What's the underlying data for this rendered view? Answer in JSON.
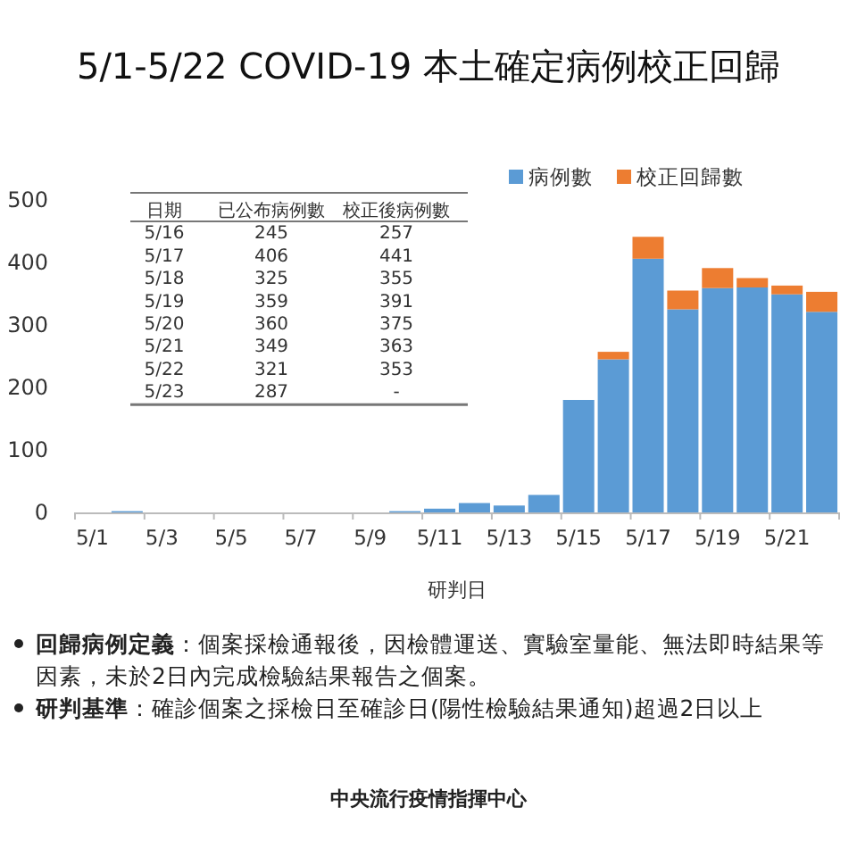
{
  "chart_data": {
    "type": "bar",
    "stacked": true,
    "title": "5/1-5/22 COVID-19 本土確定病例校正回歸",
    "xlabel": "研判日",
    "categories": [
      "5/1",
      null,
      "5/3",
      null,
      "5/5",
      null,
      "5/7",
      null,
      "5/9",
      null,
      "5/11",
      null,
      "5/13",
      null,
      "5/15",
      null,
      "5/17",
      null,
      "5/19",
      null,
      "5/21",
      null
    ],
    "series": [
      {
        "name": "病例數",
        "color": "#5b9bd5",
        "values": [
          0,
          2,
          0,
          0,
          0,
          0,
          0,
          0,
          0,
          2,
          6,
          15,
          11,
          28,
          180,
          245,
          406,
          325,
          359,
          360,
          349,
          321
        ]
      },
      {
        "name": "校正回歸數",
        "color": "#ed7d31",
        "values": [
          0,
          0,
          0,
          0,
          0,
          0,
          0,
          0,
          0,
          0,
          0,
          0,
          0,
          0,
          0,
          12,
          35,
          30,
          32,
          15,
          14,
          32
        ]
      }
    ],
    "ylim": [
      0,
      500
    ],
    "yticks": [
      0,
      100,
      200,
      300,
      400,
      500
    ],
    "legend": "top right",
    "annotations": [
      "日期",
      "已公布病例數",
      "校正後病例數",
      "5/16",
      "245",
      "257",
      "5/17",
      "406",
      "441",
      "5/18",
      "325",
      "355",
      "5/19",
      "359",
      "391",
      "5/20",
      "360",
      "375",
      "5/21",
      "349",
      "363",
      "5/22",
      "321",
      "353",
      "5/23",
      "287",
      "-",
      "**回歸病例定義**：個案採檢通報後，因檢體運送、實驗室量能、無法即時結果等因素，未於2日內完成檢驗結果報告之個案。",
      "**研判基準**：確診個案之採檢日至確診日(陽性檢驗結果通知)超過2日以上",
      "中央流行疫情指揮中心"
    ]
  }
}
